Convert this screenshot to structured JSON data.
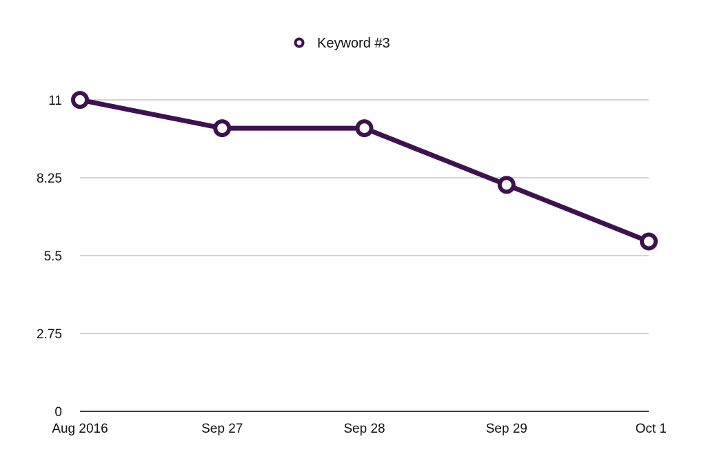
{
  "chart_data": {
    "type": "line",
    "title": "",
    "xlabel": "",
    "ylabel": "",
    "categories": [
      "Aug 2016",
      "Sep 27",
      "Sep 28",
      "Sep 29",
      "Oct 1"
    ],
    "series": [
      {
        "name": "Keyword #3",
        "values": [
          11,
          10,
          10,
          8,
          6
        ],
        "color": "#3f1150"
      }
    ],
    "ylim": [
      0,
      11
    ],
    "yticks": [
      "0",
      "2.75",
      "5.5",
      "8.25",
      "11"
    ],
    "ytick_values": [
      0,
      2.75,
      5.5,
      8.25,
      11
    ],
    "grid": true,
    "legend": "top-center"
  }
}
